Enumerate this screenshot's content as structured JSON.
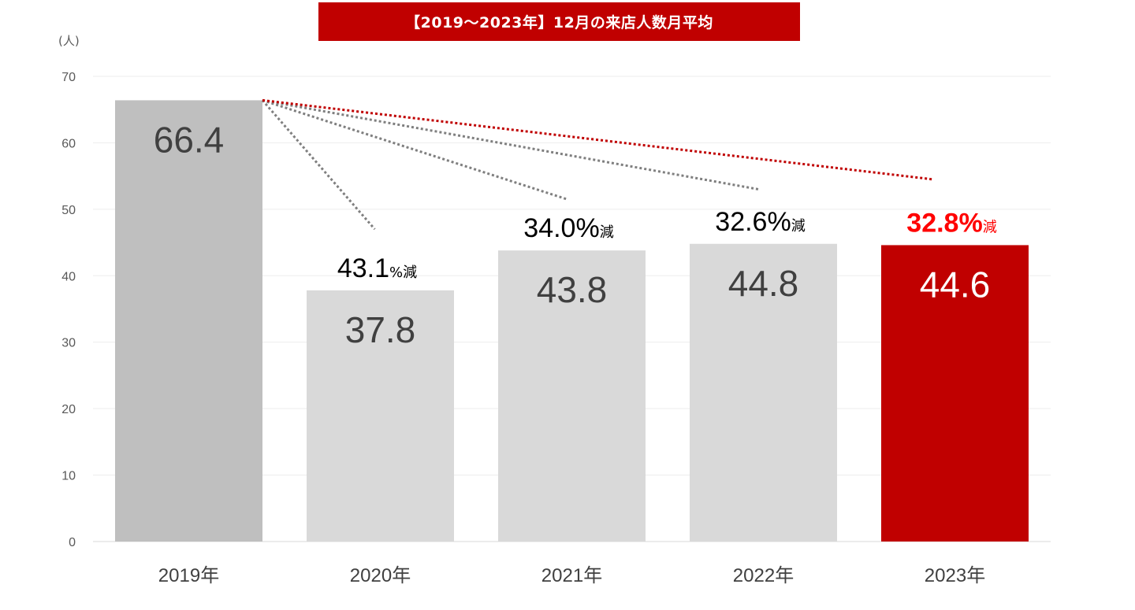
{
  "title": "【2019～2023年】12月の来店人数月平均",
  "chart_data": {
    "type": "bar",
    "title": "【2019～2023年】12月の来店人数月平均",
    "ylabel": "(人)",
    "xlabel": "",
    "ylim": [
      0,
      70
    ],
    "yticks": [
      0,
      10,
      20,
      30,
      40,
      50,
      60,
      70
    ],
    "grid": true,
    "categories": [
      "2019年",
      "2020年",
      "2021年",
      "2022年",
      "2023年"
    ],
    "values": [
      66.4,
      37.8,
      43.8,
      44.8,
      44.6
    ],
    "value_labels": [
      "66.4",
      "37.8",
      "43.8",
      "44.8",
      "44.6"
    ],
    "bar_colors": [
      "#bfbfbf",
      "#d9d9d9",
      "#d9d9d9",
      "#d9d9d9",
      "#c00000"
    ],
    "value_label_colors": [
      "#404040",
      "#404040",
      "#404040",
      "#404040",
      "#ffffff"
    ],
    "annotations": [
      {
        "category": "2020年",
        "number": "43.1",
        "suffix": "%減",
        "color": "#000000",
        "line_color": "#7f7f7f",
        "line_end_value": 47
      },
      {
        "category": "2021年",
        "number": "34.0%",
        "suffix": "減",
        "color": "#000000",
        "line_color": "#7f7f7f",
        "line_end_value": 51.5
      },
      {
        "category": "2022年",
        "number": "32.6%",
        "suffix": "減",
        "color": "#000000",
        "line_color": "#7f7f7f",
        "line_end_value": 53
      },
      {
        "category": "2023年",
        "number": "32.8%",
        "suffix": "減",
        "color": "#ff0000",
        "line_color": "#c00000",
        "line_end_value": 54.5
      }
    ]
  }
}
